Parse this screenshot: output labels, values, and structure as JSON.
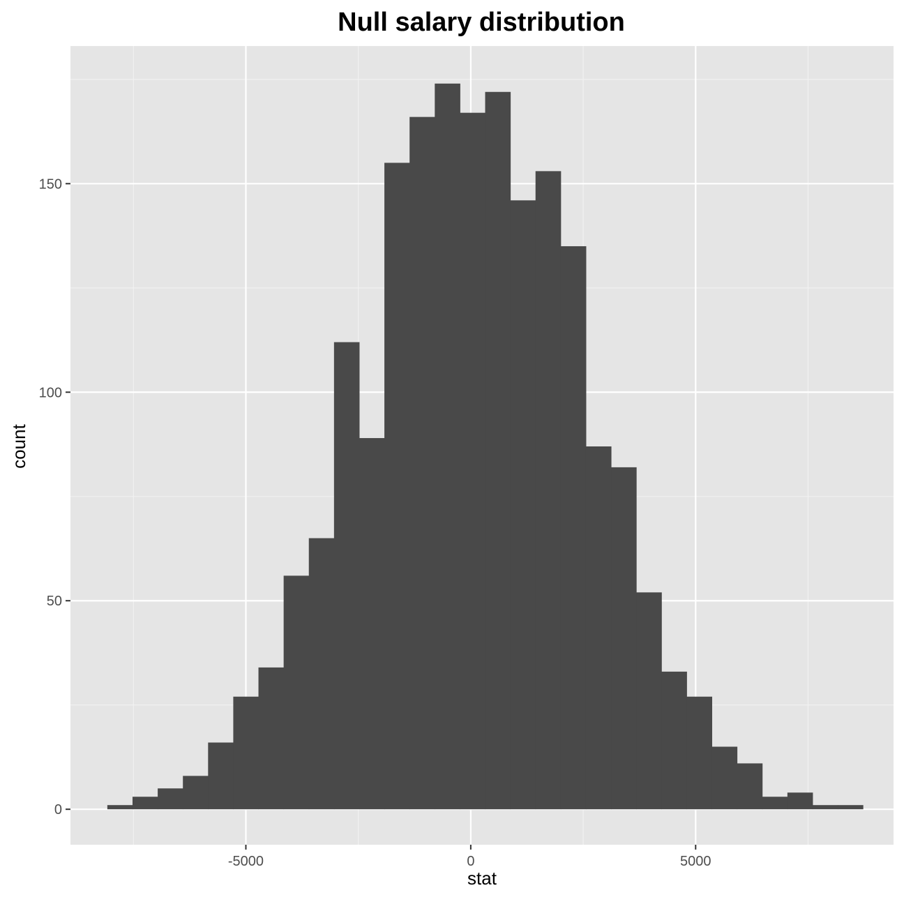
{
  "chart_data": {
    "type": "bar",
    "subtype": "histogram",
    "title": "Null salary distribution",
    "xlabel": "stat",
    "ylabel": "count",
    "xlim": [
      -8900,
      9400
    ],
    "ylim": [
      -8.5,
      183
    ],
    "x_ticks": [
      -5000,
      0,
      5000
    ],
    "x_tick_labels": [
      "-5000",
      "0",
      "5000"
    ],
    "y_ticks": [
      0,
      50,
      100,
      150
    ],
    "y_tick_labels": [
      "0",
      "50",
      "100",
      "150"
    ],
    "bin_width": 560,
    "bins": [
      {
        "x0": -8080,
        "x1": -7520,
        "count": 1
      },
      {
        "x0": -7520,
        "x1": -6960,
        "count": 3
      },
      {
        "x0": -6960,
        "x1": -6400,
        "count": 5
      },
      {
        "x0": -6400,
        "x1": -5840,
        "count": 8
      },
      {
        "x0": -5840,
        "x1": -5280,
        "count": 16
      },
      {
        "x0": -5280,
        "x1": -4720,
        "count": 27
      },
      {
        "x0": -4720,
        "x1": -4160,
        "count": 34
      },
      {
        "x0": -4160,
        "x1": -3600,
        "count": 56
      },
      {
        "x0": -3600,
        "x1": -3040,
        "count": 65
      },
      {
        "x0": -3040,
        "x1": -2480,
        "count": 112
      },
      {
        "x0": -2480,
        "x1": -1920,
        "count": 89
      },
      {
        "x0": -1920,
        "x1": -1360,
        "count": 155
      },
      {
        "x0": -1360,
        "x1": -800,
        "count": 166
      },
      {
        "x0": -800,
        "x1": -240,
        "count": 174
      },
      {
        "x0": -240,
        "x1": 320,
        "count": 167
      },
      {
        "x0": 320,
        "x1": 880,
        "count": 172
      },
      {
        "x0": 880,
        "x1": 1440,
        "count": 146
      },
      {
        "x0": 1440,
        "x1": 2000,
        "count": 153
      },
      {
        "x0": 2000,
        "x1": 2560,
        "count": 135
      },
      {
        "x0": 2560,
        "x1": 3120,
        "count": 87
      },
      {
        "x0": 3120,
        "x1": 3680,
        "count": 82
      },
      {
        "x0": 3680,
        "x1": 4240,
        "count": 52
      },
      {
        "x0": 4240,
        "x1": 4800,
        "count": 33
      },
      {
        "x0": 4800,
        "x1": 5360,
        "count": 27
      },
      {
        "x0": 5360,
        "x1": 5920,
        "count": 15
      },
      {
        "x0": 5920,
        "x1": 6480,
        "count": 11
      },
      {
        "x0": 6480,
        "x1": 7040,
        "count": 3
      },
      {
        "x0": 7040,
        "x1": 7600,
        "count": 4
      },
      {
        "x0": 7600,
        "x1": 8160,
        "count": 1
      },
      {
        "x0": 8160,
        "x1": 8720,
        "count": 1
      }
    ],
    "grid": true,
    "legend": "none",
    "colors": {
      "panel_background": "#e5e5e5",
      "grid_major": "#ffffff",
      "grid_minor": "#f2f2f2",
      "bar_fill": "#494949",
      "tick_text": "#4d4d4d",
      "tick_mark": "#333333"
    }
  }
}
